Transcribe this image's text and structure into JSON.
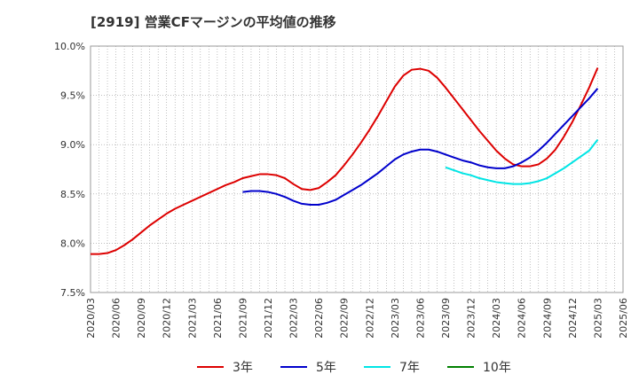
{
  "chart_data": {
    "type": "line",
    "title": "[2919]  営業CFマージンの平均値の推移",
    "y_ticks": [
      "10.0%",
      "9.5%",
      "9.0%",
      "8.5%",
      "8.0%",
      "7.5%"
    ],
    "ylim": [
      7.5,
      10.0
    ],
    "x_ticks": [
      "2020/03",
      "2020/06",
      "2020/09",
      "2020/12",
      "2021/03",
      "2021/06",
      "2021/09",
      "2021/12",
      "2022/03",
      "2022/06",
      "2022/09",
      "2022/12",
      "2023/03",
      "2023/06",
      "2023/09",
      "2023/12",
      "2024/03",
      "2024/06",
      "2024/09",
      "2024/12",
      "2025/03",
      "2025/06"
    ],
    "grid": true,
    "legend_position": "bottom",
    "series": [
      {
        "name": "3年",
        "color": "#dd0000",
        "x": [
          "2020/03",
          "2020/04",
          "2020/05",
          "2020/06",
          "2020/07",
          "2020/08",
          "2020/09",
          "2020/10",
          "2020/11",
          "2020/12",
          "2021/01",
          "2021/02",
          "2021/03",
          "2021/04",
          "2021/05",
          "2021/06",
          "2021/07",
          "2021/08",
          "2021/09",
          "2021/10",
          "2021/11",
          "2021/12",
          "2022/01",
          "2022/02",
          "2022/03",
          "2022/04",
          "2022/05",
          "2022/06",
          "2022/07",
          "2022/08",
          "2022/09",
          "2022/10",
          "2022/11",
          "2022/12",
          "2023/01",
          "2023/02",
          "2023/03",
          "2023/04",
          "2023/05",
          "2023/06",
          "2023/07",
          "2023/08",
          "2023/09",
          "2023/10",
          "2023/11",
          "2023/12",
          "2024/01",
          "2024/02",
          "2024/03",
          "2024/04",
          "2024/05",
          "2024/06",
          "2024/07",
          "2024/08",
          "2024/09",
          "2024/10",
          "2024/11",
          "2024/12",
          "2025/01",
          "2025/02",
          "2025/03"
        ],
        "values": [
          7.89,
          7.89,
          7.9,
          7.93,
          7.98,
          8.04,
          8.11,
          8.18,
          8.24,
          8.3,
          8.35,
          8.39,
          8.43,
          8.47,
          8.51,
          8.55,
          8.59,
          8.62,
          8.66,
          8.68,
          8.7,
          8.7,
          8.69,
          8.66,
          8.6,
          8.55,
          8.54,
          8.56,
          8.62,
          8.69,
          8.79,
          8.9,
          9.02,
          9.15,
          9.29,
          9.44,
          9.59,
          9.7,
          9.76,
          9.77,
          9.75,
          9.68,
          9.58,
          9.47,
          9.36,
          9.25,
          9.14,
          9.04,
          8.94,
          8.86,
          8.8,
          8.78,
          8.78,
          8.8,
          8.86,
          8.95,
          9.08,
          9.23,
          9.4,
          9.58,
          9.78
        ]
      },
      {
        "name": "5年",
        "color": "#0000cc",
        "x": [
          "2021/09",
          "2021/10",
          "2021/11",
          "2021/12",
          "2022/01",
          "2022/02",
          "2022/03",
          "2022/04",
          "2022/05",
          "2022/06",
          "2022/07",
          "2022/08",
          "2022/09",
          "2022/10",
          "2022/11",
          "2022/12",
          "2023/01",
          "2023/02",
          "2023/03",
          "2023/04",
          "2023/05",
          "2023/06",
          "2023/07",
          "2023/08",
          "2023/09",
          "2023/10",
          "2023/11",
          "2023/12",
          "2024/01",
          "2024/02",
          "2024/03",
          "2024/04",
          "2024/05",
          "2024/06",
          "2024/07",
          "2024/08",
          "2024/09",
          "2024/10",
          "2024/11",
          "2024/12",
          "2025/01",
          "2025/02",
          "2025/03"
        ],
        "values": [
          8.52,
          8.53,
          8.53,
          8.52,
          8.5,
          8.47,
          8.43,
          8.4,
          8.39,
          8.39,
          8.41,
          8.44,
          8.49,
          8.54,
          8.59,
          8.65,
          8.71,
          8.78,
          8.85,
          8.9,
          8.93,
          8.95,
          8.95,
          8.93,
          8.9,
          8.87,
          8.84,
          8.82,
          8.79,
          8.77,
          8.76,
          8.76,
          8.78,
          8.82,
          8.87,
          8.94,
          9.02,
          9.11,
          9.2,
          9.29,
          9.38,
          9.47,
          9.57
        ]
      },
      {
        "name": "7年",
        "color": "#00e5e5",
        "x": [
          "2023/09",
          "2023/10",
          "2023/11",
          "2023/12",
          "2024/01",
          "2024/02",
          "2024/03",
          "2024/04",
          "2024/05",
          "2024/06",
          "2024/07",
          "2024/08",
          "2024/09",
          "2024/10",
          "2024/11",
          "2024/12",
          "2025/01",
          "2025/02",
          "2025/03"
        ],
        "values": [
          8.77,
          8.74,
          8.71,
          8.69,
          8.66,
          8.64,
          8.62,
          8.61,
          8.6,
          8.6,
          8.61,
          8.63,
          8.66,
          8.71,
          8.76,
          8.82,
          8.88,
          8.94,
          9.05
        ]
      },
      {
        "name": "10年",
        "color": "#008000",
        "x": [],
        "values": []
      }
    ]
  }
}
